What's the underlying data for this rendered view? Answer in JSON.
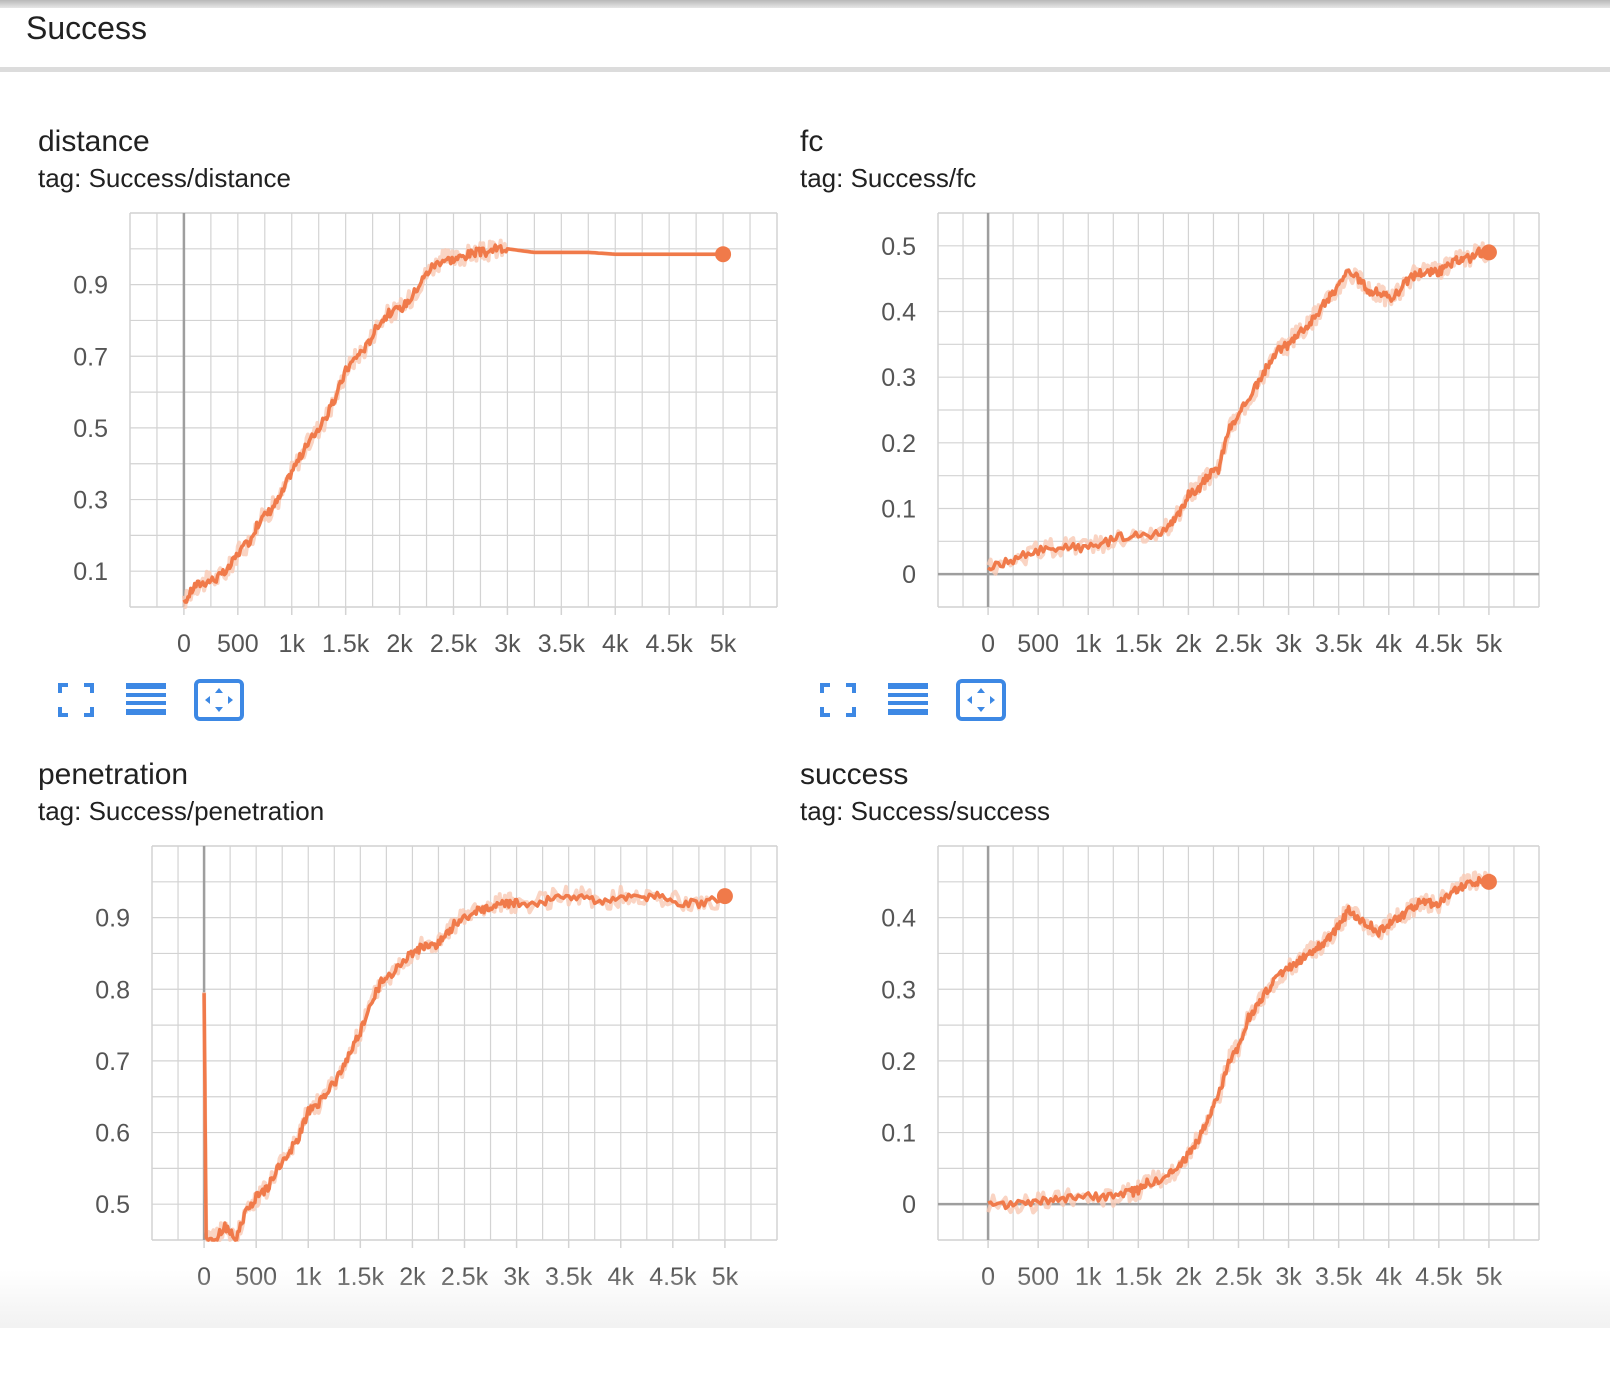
{
  "section": {
    "title": "Success"
  },
  "colors": {
    "series": "#f07a4a",
    "raw": "#f9c9b4",
    "grid": "#d3d3d3",
    "axis": "#9e9e9e",
    "icon": "#3d88e4"
  },
  "toolbar": {
    "icons": [
      "fullscreen-icon",
      "data-table-icon",
      "fit-domain-icon"
    ]
  },
  "charts": [
    {
      "id": "distance",
      "title": "distance",
      "tag": "tag: Success/distance",
      "chart_data": {
        "type": "line",
        "title": "distance",
        "xlabel": "",
        "ylabel": "",
        "xlim": [
          -500,
          5500
        ],
        "ylim": [
          0.0,
          1.1
        ],
        "x_ticks": [
          0,
          500,
          1000,
          1500,
          2000,
          2500,
          3000,
          3500,
          4000,
          4500,
          5000
        ],
        "x_tick_labels": [
          "0",
          "500",
          "1k",
          "1.5k",
          "2k",
          "2.5k",
          "3k",
          "3.5k",
          "4k",
          "4.5k",
          "5k"
        ],
        "y_ticks": [
          0.1,
          0.3,
          0.5,
          0.7,
          0.9
        ],
        "y_tick_labels": [
          "0.1",
          "0.3",
          "0.5",
          "0.7",
          "0.9"
        ],
        "grid": true,
        "series": [
          {
            "x": [
              0,
              100,
              200,
              300,
              400,
              500,
              600,
              700,
              800,
              900,
              1000,
              1100,
              1200,
              1300,
              1400,
              1500,
              1600,
              1700,
              1800,
              1900,
              2000,
              2100,
              2200,
              2300,
              2400,
              2500,
              2600,
              2700,
              2800,
              2900,
              3000,
              3250,
              3500,
              3750,
              4000,
              4500,
              5000
            ],
            "y": [
              0.01,
              0.06,
              0.07,
              0.08,
              0.1,
              0.15,
              0.18,
              0.24,
              0.27,
              0.31,
              0.38,
              0.43,
              0.48,
              0.52,
              0.58,
              0.66,
              0.7,
              0.73,
              0.79,
              0.82,
              0.83,
              0.86,
              0.91,
              0.95,
              0.97,
              0.97,
              0.98,
              0.99,
              0.99,
              1.0,
              1.0,
              0.99,
              0.99,
              0.99,
              0.985,
              0.985,
              0.985
            ]
          }
        ]
      }
    },
    {
      "id": "fc",
      "title": "fc",
      "tag": "tag: Success/fc",
      "chart_data": {
        "type": "line",
        "title": "fc",
        "xlabel": "",
        "ylabel": "",
        "xlim": [
          -500,
          5500
        ],
        "ylim": [
          -0.05,
          0.55
        ],
        "x_ticks": [
          0,
          500,
          1000,
          1500,
          2000,
          2500,
          3000,
          3500,
          4000,
          4500,
          5000
        ],
        "x_tick_labels": [
          "0",
          "500",
          "1k",
          "1.5k",
          "2k",
          "2.5k",
          "3k",
          "3.5k",
          "4k",
          "4.5k",
          "5k"
        ],
        "y_ticks": [
          0,
          0.1,
          0.2,
          0.3,
          0.4,
          0.5
        ],
        "y_tick_labels": [
          "0",
          "0.1",
          "0.2",
          "0.3",
          "0.4",
          "0.5"
        ],
        "grid": true,
        "series": [
          {
            "x": [
              0,
              200,
              400,
              600,
              800,
              1000,
              1200,
              1400,
              1600,
              1800,
              1900,
              2000,
              2100,
              2200,
              2300,
              2400,
              2500,
              2600,
              2700,
              2800,
              2900,
              3000,
              3100,
              3200,
              3300,
              3400,
              3500,
              3600,
              3700,
              3800,
              3900,
              4000,
              4100,
              4200,
              4300,
              4400,
              4500,
              4600,
              4700,
              4800,
              4900,
              5000
            ],
            "y": [
              0.01,
              0.02,
              0.03,
              0.04,
              0.04,
              0.04,
              0.05,
              0.06,
              0.06,
              0.07,
              0.09,
              0.12,
              0.13,
              0.15,
              0.16,
              0.22,
              0.24,
              0.27,
              0.29,
              0.32,
              0.34,
              0.35,
              0.37,
              0.38,
              0.4,
              0.42,
              0.44,
              0.46,
              0.45,
              0.43,
              0.43,
              0.42,
              0.43,
              0.45,
              0.46,
              0.46,
              0.46,
              0.47,
              0.48,
              0.48,
              0.49,
              0.49
            ]
          }
        ]
      }
    },
    {
      "id": "penetration",
      "title": "penetration",
      "tag": "tag: Success/penetration",
      "chart_data": {
        "type": "line",
        "title": "penetration",
        "xlabel": "",
        "ylabel": "",
        "xlim": [
          -500,
          5500
        ],
        "ylim": [
          0.45,
          1.0
        ],
        "x_ticks": [
          0,
          500,
          1000,
          1500,
          2000,
          2500,
          3000,
          3500,
          4000,
          4500,
          5000
        ],
        "x_tick_labels": [
          "0",
          "500",
          "1k",
          "1.5k",
          "2k",
          "2.5k",
          "3k",
          "3.5k",
          "4k",
          "4.5k",
          "5k"
        ],
        "y_ticks": [
          0.5,
          0.6,
          0.7,
          0.8,
          0.9
        ],
        "y_tick_labels": [
          "0.5",
          "0.6",
          "0.7",
          "0.8",
          "0.9"
        ],
        "grid": true,
        "series": [
          {
            "x": [
              0,
              20,
              100,
              200,
              300,
              400,
              500,
              600,
              700,
              800,
              900,
              1000,
              1100,
              1200,
              1300,
              1400,
              1500,
              1600,
              1700,
              1800,
              1900,
              2000,
              2100,
              2200,
              2300,
              2400,
              2500,
              2600,
              2700,
              2800,
              2900,
              3000,
              3200,
              3400,
              3600,
              3800,
              4000,
              4200,
              4400,
              4600,
              4800,
              5000
            ],
            "y": [
              0.8,
              0.45,
              0.45,
              0.47,
              0.45,
              0.49,
              0.51,
              0.52,
              0.55,
              0.57,
              0.59,
              0.63,
              0.64,
              0.66,
              0.68,
              0.71,
              0.74,
              0.78,
              0.81,
              0.82,
              0.84,
              0.85,
              0.86,
              0.86,
              0.87,
              0.89,
              0.9,
              0.91,
              0.91,
              0.92,
              0.92,
              0.92,
              0.92,
              0.93,
              0.93,
              0.92,
              0.93,
              0.93,
              0.93,
              0.92,
              0.92,
              0.93
            ]
          }
        ]
      }
    },
    {
      "id": "success",
      "title": "success",
      "tag": "tag: Success/success",
      "chart_data": {
        "type": "line",
        "title": "success",
        "xlabel": "",
        "ylabel": "",
        "xlim": [
          -500,
          5500
        ],
        "ylim": [
          -0.05,
          0.5
        ],
        "x_ticks": [
          0,
          500,
          1000,
          1500,
          2000,
          2500,
          3000,
          3500,
          4000,
          4500,
          5000
        ],
        "x_tick_labels": [
          "0",
          "500",
          "1k",
          "1.5k",
          "2k",
          "2.5k",
          "3k",
          "3.5k",
          "4k",
          "4.5k",
          "5k"
        ],
        "y_ticks": [
          0,
          0.1,
          0.2,
          0.3,
          0.4
        ],
        "y_tick_labels": [
          "0",
          "0.1",
          "0.2",
          "0.3",
          "0.4"
        ],
        "grid": true,
        "series": [
          {
            "x": [
              0,
              200,
              400,
              600,
              800,
              1000,
              1200,
              1400,
              1500,
              1600,
              1800,
              1900,
              2000,
              2100,
              2200,
              2300,
              2400,
              2500,
              2600,
              2700,
              2800,
              2900,
              3000,
              3100,
              3200,
              3300,
              3400,
              3500,
              3600,
              3700,
              3800,
              3900,
              4000,
              4100,
              4200,
              4300,
              4400,
              4500,
              4600,
              4700,
              4800,
              4900,
              5000
            ],
            "y": [
              0.0,
              0.0,
              0.0,
              0.005,
              0.01,
              0.01,
              0.01,
              0.015,
              0.02,
              0.03,
              0.04,
              0.05,
              0.07,
              0.09,
              0.12,
              0.15,
              0.2,
              0.22,
              0.26,
              0.28,
              0.3,
              0.32,
              0.33,
              0.34,
              0.35,
              0.36,
              0.37,
              0.39,
              0.41,
              0.4,
              0.39,
              0.38,
              0.39,
              0.4,
              0.41,
              0.42,
              0.42,
              0.42,
              0.43,
              0.44,
              0.45,
              0.45,
              0.45
            ]
          }
        ]
      }
    }
  ]
}
